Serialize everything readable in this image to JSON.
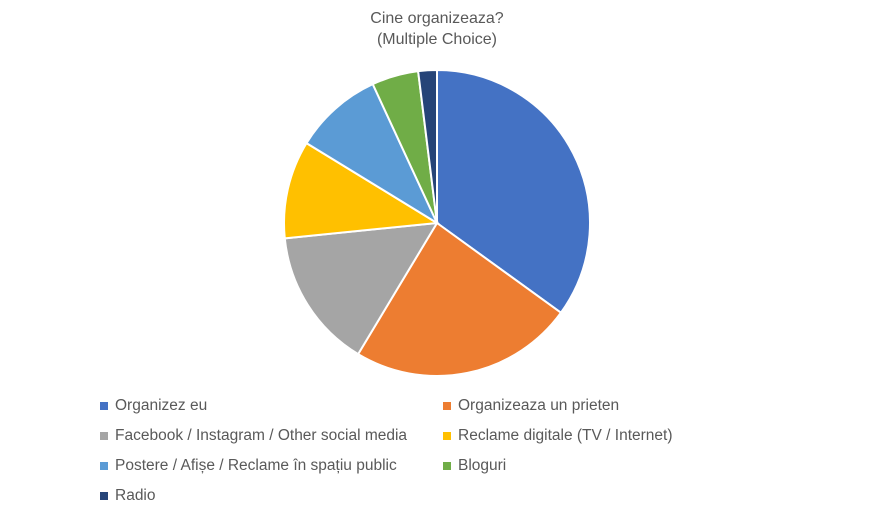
{
  "chart_data": {
    "type": "pie",
    "title": "Cine organizeaza?",
    "subtitle": "(Multiple Choice)",
    "legend_position": "bottom",
    "categories": [
      "Organizez eu",
      "Organizeaza un prieten",
      "Facebook / Instagram / Other social media",
      "Reclame digitale (TV / Internet)",
      "Postere / Afișe / Reclame în spațiu public",
      "Bloguri",
      "Radio"
    ],
    "values": [
      35.5,
      24.0,
      15.0,
      10.5,
      9.5,
      5.0,
      2.0
    ],
    "colors": [
      "#4472C4",
      "#ED7D31",
      "#A5A5A5",
      "#FFC000",
      "#5B9BD5",
      "#70AD47",
      "#264478"
    ]
  }
}
